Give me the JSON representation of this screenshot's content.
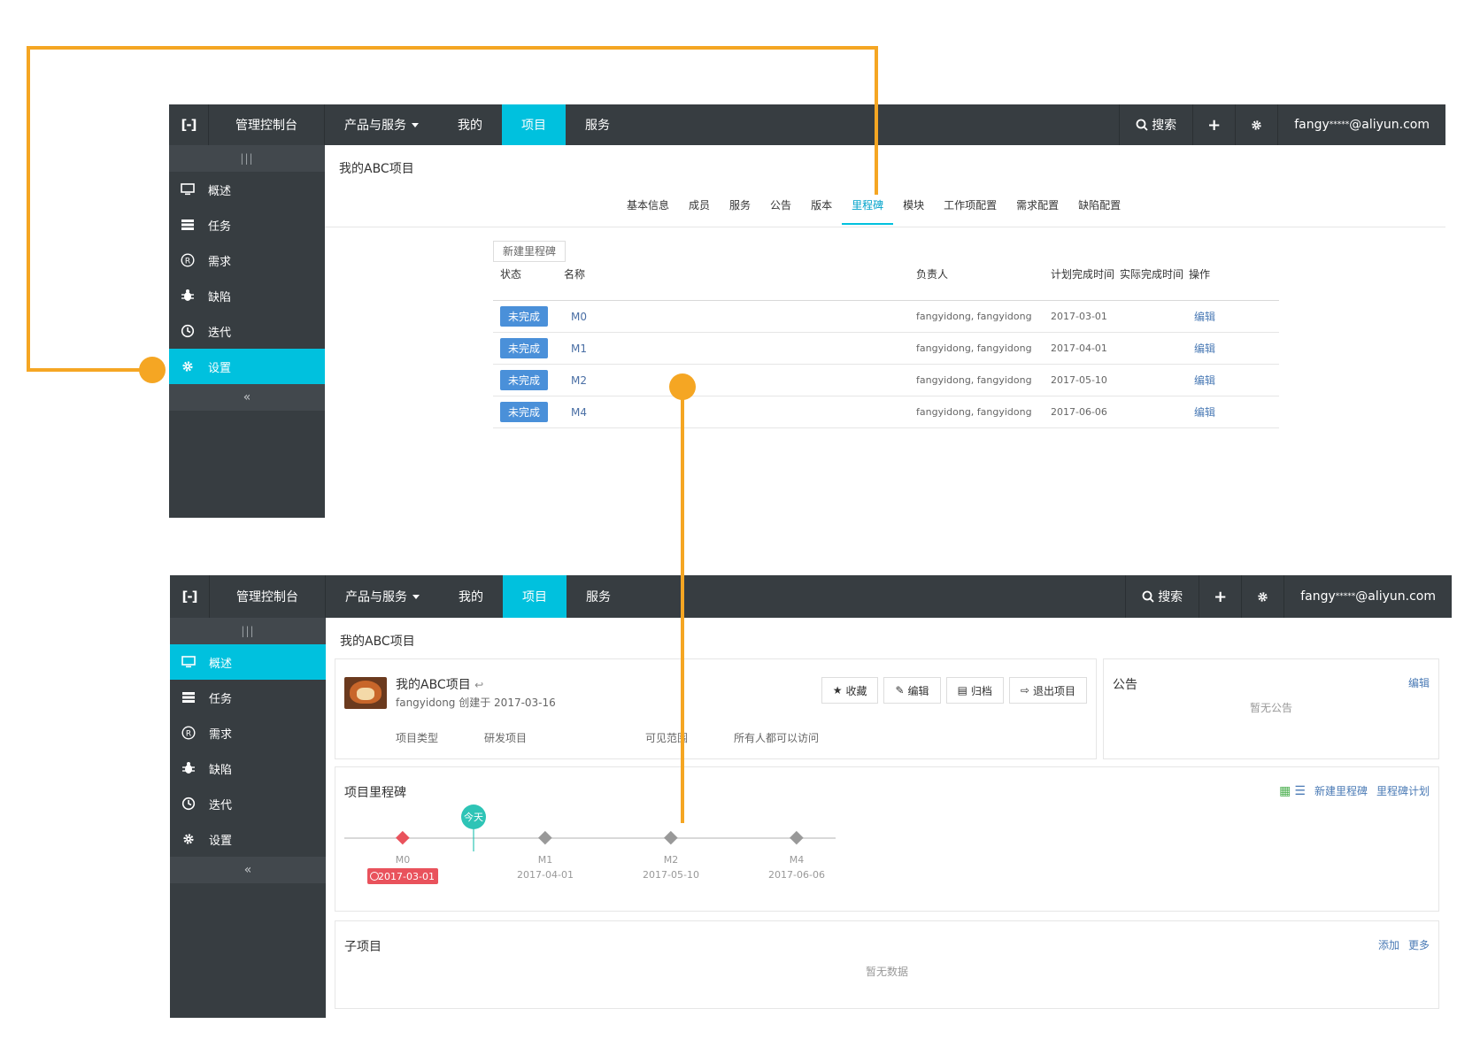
{
  "topbar": {
    "logo": "[-]",
    "console": "管理控制台",
    "nav": [
      "产品与服务",
      "我的",
      "项目",
      "服务"
    ],
    "search": "搜索",
    "plus": "+",
    "user_prefix": "fangy",
    "user_stars": "*****",
    "user_suffix": "@aliyun.com"
  },
  "sidebar": {
    "handle": "|||",
    "items": [
      "概述",
      "任务",
      "需求",
      "缺陷",
      "迭代",
      "设置"
    ],
    "collapse": "«"
  },
  "page_title": "我的ABC项目",
  "shot1": {
    "tabs": [
      "基本信息",
      "成员",
      "服务",
      "公告",
      "版本",
      "里程碑",
      "模块",
      "工作项配置",
      "需求配置",
      "缺陷配置"
    ],
    "active_tab": "里程碑",
    "new_button": "新建里程碑",
    "headers": [
      "状态",
      "名称",
      "负责人",
      "计划完成时间",
      "实际完成时间",
      "操作"
    ],
    "rows": [
      {
        "status": "未完成",
        "name": "M0",
        "owner": "fangyidong, fangyidong",
        "planned": "2017-03-01",
        "actual": "",
        "action": "编辑"
      },
      {
        "status": "未完成",
        "name": "M1",
        "owner": "fangyidong, fangyidong",
        "planned": "2017-04-01",
        "actual": "",
        "action": "编辑"
      },
      {
        "status": "未完成",
        "name": "M2",
        "owner": "fangyidong, fangyidong",
        "planned": "2017-05-10",
        "actual": "",
        "action": "编辑"
      },
      {
        "status": "未完成",
        "name": "M4",
        "owner": "fangyidong, fangyidong",
        "planned": "2017-06-06",
        "actual": "",
        "action": "编辑"
      }
    ]
  },
  "shot2": {
    "project": {
      "name": "我的ABC项目",
      "meta": "fangyidong 创建于 2017-03-16",
      "type_label": "项目类型",
      "type_value": "研发项目",
      "scope_label": "可见范围",
      "scope_value": "所有人都可以访问",
      "buttons": [
        "收藏",
        "编辑",
        "归档",
        "退出项目"
      ]
    },
    "notice": {
      "title": "公告",
      "edit": "编辑",
      "empty": "暂无公告"
    },
    "milestones": {
      "title": "项目里程碑",
      "new": "新建里程碑",
      "plan": "里程碑计划",
      "today": "今天",
      "items": [
        {
          "name": "M0",
          "date": "2017-03-01",
          "overdue": true
        },
        {
          "name": "M1",
          "date": "2017-04-01",
          "overdue": false
        },
        {
          "name": "M2",
          "date": "2017-05-10",
          "overdue": false
        },
        {
          "name": "M4",
          "date": "2017-06-06",
          "overdue": false
        }
      ]
    },
    "subprojects": {
      "title": "子项目",
      "add": "添加",
      "more": "更多",
      "empty": "暂无数据"
    }
  },
  "colors": {
    "accent": "#00c1de",
    "topbar": "#373d41",
    "connector": "#f5a623",
    "overdue": "#e9525c",
    "badge": "#4a90d9"
  }
}
